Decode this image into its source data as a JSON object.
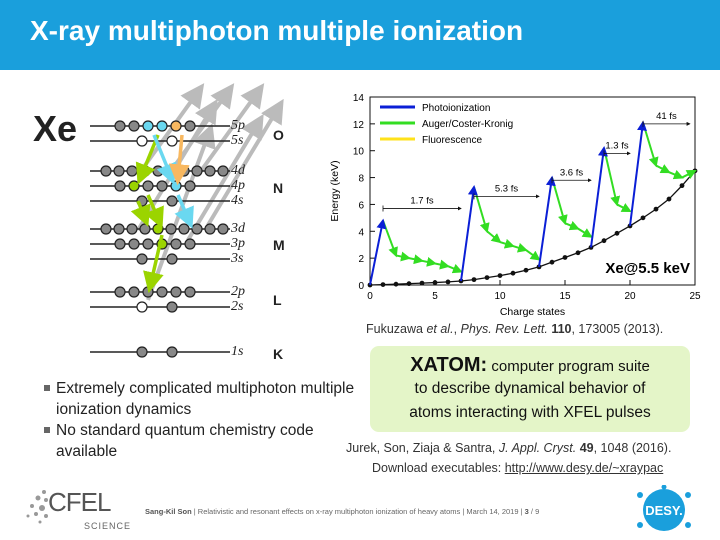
{
  "title": "X-ray multiphoton multiple ionization",
  "atom_label": "Xe",
  "shells": {
    "O_5p": "5p",
    "O_5s": "5s",
    "N_4d": "4d",
    "N_4p": "4p",
    "N_4s": "4s",
    "M_3d": "3d",
    "M_3p": "3p",
    "M_3s": "3s",
    "L_2p": "2p",
    "L_2s": "2s",
    "K_1s": "1s",
    "letter_O": "O",
    "letter_N": "N",
    "letter_M": "M",
    "letter_L": "L",
    "letter_K": "K"
  },
  "chart_data": {
    "type": "line",
    "xlabel": "Charge states",
    "ylabel": "Energy (keV)",
    "xlim": [
      0,
      25
    ],
    "ylim": [
      0,
      14
    ],
    "xticks": [
      0,
      5,
      10,
      15,
      20,
      25
    ],
    "yticks": [
      0,
      2,
      4,
      6,
      8,
      10,
      12,
      14
    ],
    "legend": [
      "Photoionization",
      "Auger/Coster-Kronig",
      "Fluorescence"
    ],
    "legend_position": "top-left",
    "colors": {
      "photoionization": "#0b1fd6",
      "auger": "#33dd22",
      "fluorescence": "#ffe21a",
      "threshold": "#111111"
    },
    "annotation": "Xe@5.5 keV",
    "time_labels": [
      "1.7 fs",
      "5.3 fs",
      "3.6 fs",
      "1.3 fs",
      "41 fs"
    ],
    "threshold_series": {
      "name": "",
      "x": [
        0,
        1,
        2,
        3,
        4,
        5,
        6,
        7,
        8,
        9,
        10,
        11,
        12,
        13,
        14,
        15,
        16,
        17,
        18,
        19,
        20,
        21,
        22,
        23,
        24,
        25
      ],
      "y": [
        0.0,
        0.03,
        0.06,
        0.1,
        0.14,
        0.18,
        0.23,
        0.3,
        0.4,
        0.55,
        0.7,
        0.88,
        1.1,
        1.35,
        1.7,
        2.05,
        2.4,
        2.8,
        3.3,
        3.85,
        4.4,
        5.0,
        5.65,
        6.4,
        7.4,
        8.5
      ]
    },
    "photo_jumps": [
      {
        "x": [
          0,
          1
        ],
        "y": [
          0.0,
          4.8
        ]
      },
      {
        "x": [
          7,
          8
        ],
        "y": [
          0.3,
          7.3
        ]
      },
      {
        "x": [
          13,
          14
        ],
        "y": [
          1.35,
          8.0
        ]
      },
      {
        "x": [
          17,
          18
        ],
        "y": [
          2.8,
          10.2
        ]
      },
      {
        "x": [
          20,
          21
        ],
        "y": [
          4.4,
          12.1
        ]
      }
    ],
    "auger_steps": [
      {
        "x": [
          1,
          2,
          3,
          4,
          5,
          6,
          7
        ],
        "y": [
          4.8,
          2.2,
          2.0,
          1.8,
          1.6,
          1.4,
          1.0
        ]
      },
      {
        "x": [
          8,
          9,
          10,
          11,
          12,
          13
        ],
        "y": [
          7.3,
          4.0,
          3.2,
          2.9,
          2.6,
          1.9
        ]
      },
      {
        "x": [
          14,
          15,
          16,
          17
        ],
        "y": [
          8.0,
          4.6,
          4.2,
          3.6
        ]
      },
      {
        "x": [
          18,
          19,
          20
        ],
        "y": [
          10.2,
          6.0,
          5.5
        ]
      },
      {
        "x": [
          21,
          22,
          23,
          24,
          25
        ],
        "y": [
          12.1,
          8.9,
          8.4,
          8.0,
          8.5
        ]
      }
    ]
  },
  "ref1": {
    "authors": "Fukuzawa ",
    "etal": "et al.",
    "sep1": ", ",
    "journal": "Phys. Rev. Lett.",
    "sep2": " ",
    "vol": "110",
    "rest": ", 173005 (2013)."
  },
  "xatom": {
    "name": "XATOM:",
    "line1": " computer program suite",
    "line2": "to describe dynamical behavior of",
    "line3": "atoms interacting with XFEL pulses"
  },
  "bullets": [
    "Extremely complicated multiphoton multiple ionization dynamics",
    "No standard quantum chemistry code available"
  ],
  "ref2": {
    "authors": "Jurek, Son, Ziaja & Santra, ",
    "journal": "J. Appl. Cryst.",
    "sep": " ",
    "vol": "49",
    "rest": ", 1048 (2016)."
  },
  "ref3": {
    "prefix": "Download executables: ",
    "url": "http://www.desy.de/~xraypac"
  },
  "footer": {
    "author": "Sang-Kil Son",
    "rest": "  |  Relativistic and resonant effects on x-ray multiphoton ionization of heavy atoms  |  March 14, 2019  |  ",
    "page": "3",
    "total": " / 9"
  },
  "logo": {
    "cfel": "CFEL",
    "science": "SCIENCE",
    "desy": "DESY."
  }
}
